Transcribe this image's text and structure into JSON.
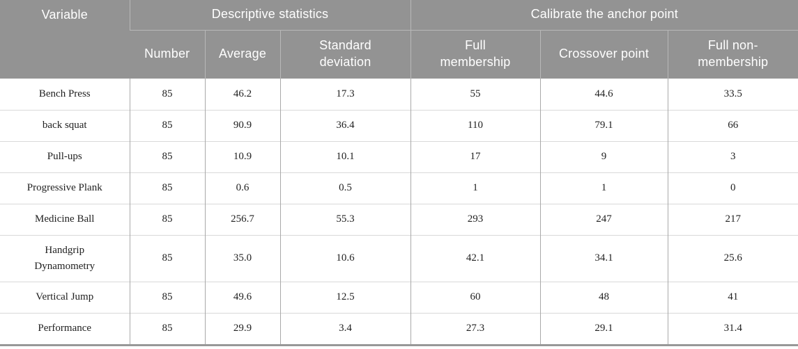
{
  "colors": {
    "header_bg": "#939393",
    "header_text": "#ffffff",
    "header_divider": "#b8b8b8",
    "body_text": "#1f1f1f",
    "vertical_grid": "#a9a9a9",
    "horizontal_grid": "#d9d9d9",
    "bottom_rule": "#989898"
  },
  "table": {
    "variable_header": "Variable",
    "groups": [
      {
        "label": "Descriptive statistics"
      },
      {
        "label": "Calibrate the anchor point"
      }
    ],
    "subheaders": [
      "Number",
      "Average",
      "Standard deviation",
      "Full membership",
      "Crossover point",
      "Full non-membership"
    ],
    "rows": [
      {
        "label": "Bench Press",
        "values": [
          "85",
          "46.2",
          "17.3",
          "55",
          "44.6",
          "33.5"
        ]
      },
      {
        "label": "back squat",
        "values": [
          "85",
          "90.9",
          "36.4",
          "110",
          "79.1",
          "66"
        ]
      },
      {
        "label": "Pull-ups",
        "values": [
          "85",
          "10.9",
          "10.1",
          "17",
          "9",
          "3"
        ]
      },
      {
        "label": "Progressive Plank",
        "values": [
          "85",
          "0.6",
          "0.5",
          "1",
          "1",
          "0"
        ]
      },
      {
        "label": "Medicine Ball",
        "values": [
          "85",
          "256.7",
          "55.3",
          "293",
          "247",
          "217"
        ]
      },
      {
        "label": "Handgrip Dynamometry",
        "values": [
          "85",
          "35.0",
          "10.6",
          "42.1",
          "34.1",
          "25.6"
        ]
      },
      {
        "label": "Vertical Jump",
        "values": [
          "85",
          "49.6",
          "12.5",
          "60",
          "48",
          "41"
        ]
      },
      {
        "label": "Performance",
        "values": [
          "85",
          "29.9",
          "3.4",
          "27.3",
          "29.1",
          "31.4"
        ]
      }
    ]
  }
}
